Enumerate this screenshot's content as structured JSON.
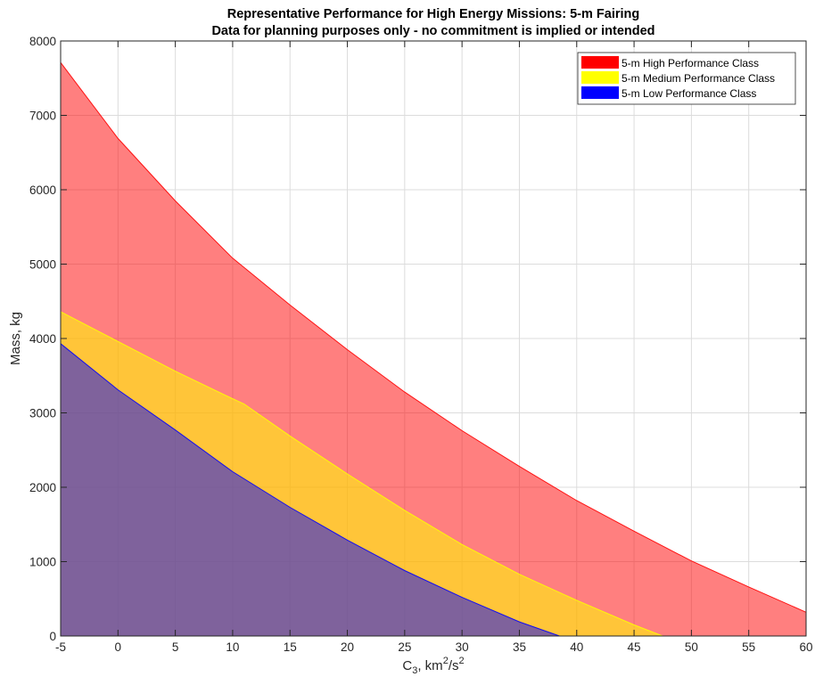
{
  "chart_data": {
    "type": "area",
    "title": "Representative Performance for High Energy Missions: 5-m Fairing",
    "subtitle": "Data for planning purposes only - no commitment is implied or intended",
    "xlabel": {
      "base": "C",
      "sub": "3",
      "mid": ", km",
      "sup1": "2",
      "slash": "/s",
      "sup2": "2"
    },
    "ylabel": "Mass, kg",
    "xlim": [
      -5,
      60
    ],
    "ylim": [
      0,
      8000
    ],
    "xticks": [
      "-5",
      "0",
      "5",
      "10",
      "15",
      "20",
      "25",
      "30",
      "35",
      "40",
      "45",
      "50",
      "55",
      "60"
    ],
    "yticks": [
      "0",
      "1000",
      "2000",
      "3000",
      "4000",
      "5000",
      "6000",
      "7000",
      "8000"
    ],
    "grid": true,
    "legend_position": "top-right",
    "series": [
      {
        "name": "5-m High Performance Class",
        "color": "#ff0000",
        "fill_opacity": 0.5,
        "x": [
          -5,
          0,
          5,
          10,
          15,
          20,
          25,
          30,
          35,
          40,
          45,
          50,
          55,
          60
        ],
        "y": [
          7710,
          6690,
          5850,
          5080,
          4450,
          3850,
          3280,
          2760,
          2280,
          1820,
          1410,
          1010,
          660,
          320
        ]
      },
      {
        "name": "5-m Medium Performance Class",
        "color": "#ffff00",
        "fill_opacity": 0.55,
        "x": [
          -5,
          0,
          5,
          10,
          11,
          15,
          20,
          25,
          30,
          35,
          40,
          45,
          47.5
        ],
        "y": [
          4360,
          3960,
          3560,
          3190,
          3120,
          2690,
          2180,
          1690,
          1230,
          830,
          480,
          150,
          0
        ]
      },
      {
        "name": "5-m Low Performance Class",
        "color": "#0000ff",
        "fill_opacity": 0.5,
        "x": [
          -5,
          0,
          5,
          10,
          15,
          20,
          25,
          30,
          35,
          38.5
        ],
        "y": [
          3930,
          3310,
          2770,
          2210,
          1730,
          1290,
          880,
          520,
          190,
          0
        ]
      }
    ]
  }
}
